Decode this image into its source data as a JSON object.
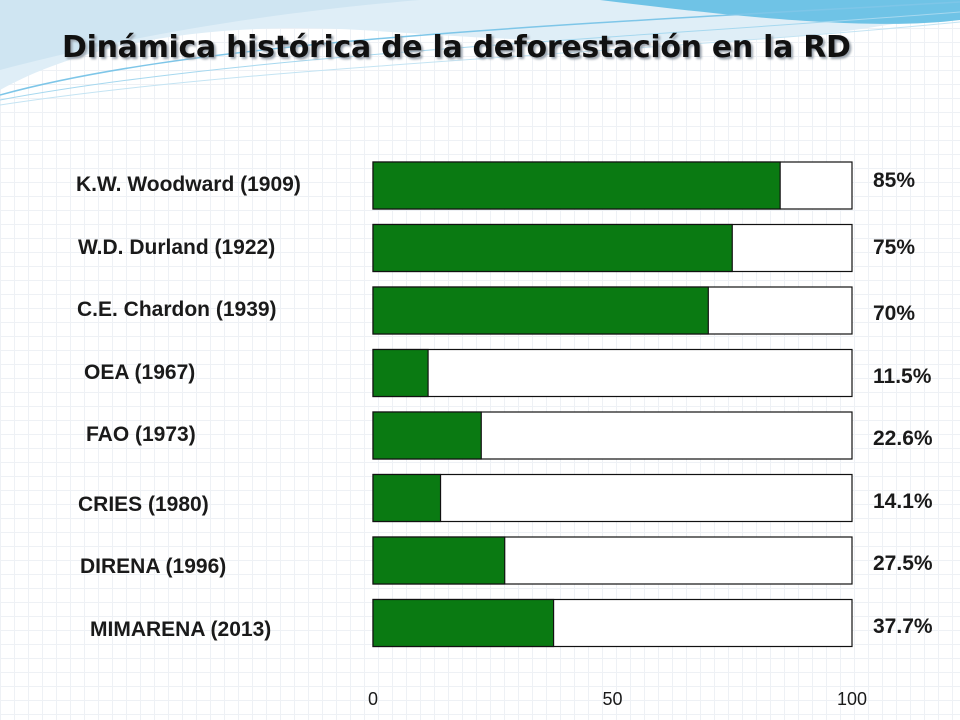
{
  "title": "Dinámica histórica de la deforestación en la RD",
  "chart_data": {
    "type": "bar",
    "orientation": "horizontal",
    "stacked_to": 100,
    "categories": [
      "K.W. Woodward (1909)",
      "W.D. Durland (1922)",
      "C.E. Chardon (1939)",
      "OEA (1967)",
      "FAO (1973)",
      "CRIES (1980)",
      "DIRENA (1996)",
      "MIMARENA (2013)"
    ],
    "values": [
      85,
      75,
      70,
      11.5,
      22.6,
      14.1,
      27.5,
      37.7
    ],
    "value_labels": [
      "85%",
      "75%",
      "70%",
      "11.5%",
      "22.6%",
      "14.1%",
      "27.5%",
      "37.7%"
    ],
    "xlim": [
      0,
      100
    ],
    "x_ticks": [
      "0",
      "50",
      "100"
    ],
    "colors": {
      "filled": "#0a7a12",
      "remainder": "#ffffff",
      "border": "#111111"
    },
    "legend": "none",
    "grid": false
  }
}
